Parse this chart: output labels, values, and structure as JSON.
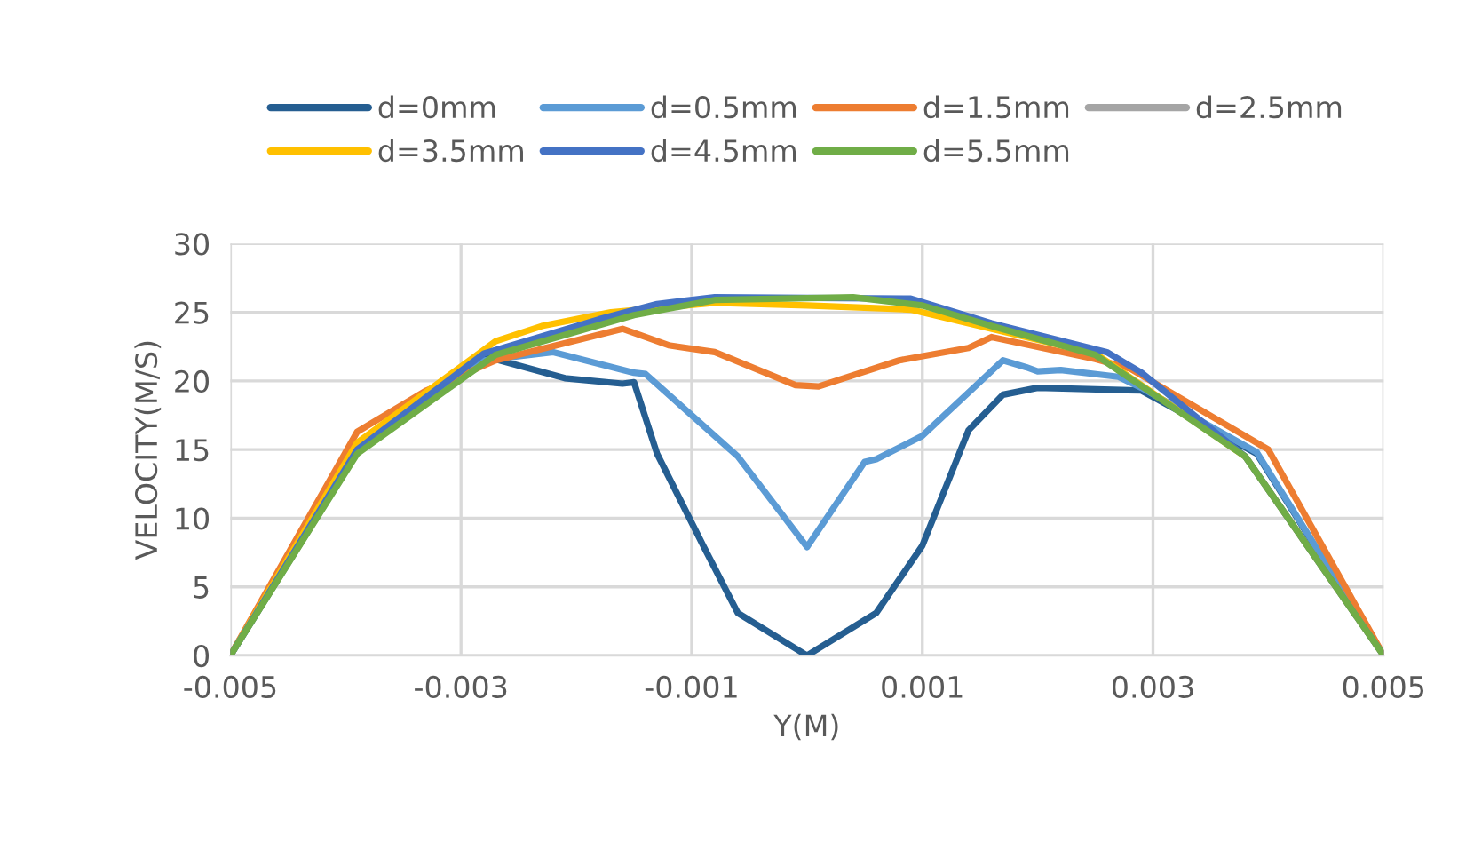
{
  "chart_data": {
    "type": "line",
    "xlabel": "Y(M)",
    "ylabel": "VELOCITY(M/S)",
    "xlim": [
      -0.005,
      0.005
    ],
    "xticks": [
      -0.005,
      -0.003,
      -0.001,
      0.001,
      0.003,
      0.005
    ],
    "ylim": [
      0,
      30
    ],
    "yticks": [
      0,
      5,
      10,
      15,
      20,
      25,
      30
    ],
    "grid": true,
    "legend": "top",
    "line_style": "solid",
    "series": [
      {
        "name": "d=0mm",
        "color": "#255e91",
        "x": [
          -0.005,
          -0.0039,
          -0.0028,
          -0.0021,
          -0.0016,
          -0.0015,
          -0.0013,
          -0.0009,
          -0.0006,
          0,
          0.0006,
          0.001,
          0.0014,
          0.0017,
          0.002,
          0.0029,
          0.0039,
          0.005
        ],
        "values": [
          0,
          14.8,
          21.8,
          20.2,
          19.8,
          19.9,
          14.7,
          8,
          3.1,
          0,
          3.1,
          8,
          16.4,
          19.0,
          19.5,
          19.3,
          14.7,
          0
        ]
      },
      {
        "name": "d=0.5mm",
        "color": "#5b9bd5",
        "x": [
          -0.005,
          -0.0039,
          -0.0028,
          -0.0022,
          -0.0015,
          -0.0014,
          -0.0006,
          0,
          0.0005,
          0.0006,
          0.001,
          0.0017,
          0.0019,
          0.002,
          0.0022,
          0.0027,
          0.0029,
          0.0039,
          0.005
        ],
        "values": [
          0,
          15.5,
          21.5,
          22.1,
          20.6,
          20.5,
          14.5,
          7.9,
          14.1,
          14.3,
          16.0,
          21.5,
          21.0,
          20.7,
          20.8,
          20.3,
          19.5,
          14.8,
          0
        ]
      },
      {
        "name": "d=1.5mm",
        "color": "#ed7d31",
        "x": [
          -0.005,
          -0.0039,
          -0.0033,
          -0.0027,
          -0.0016,
          -0.0012,
          -0.0008,
          -0.0001,
          0.0001,
          0.0008,
          0.0014,
          0.0016,
          0.0025,
          0.0028,
          0.004,
          0.005
        ],
        "values": [
          0,
          16.3,
          19.3,
          21.5,
          23.8,
          22.6,
          22.1,
          19.7,
          19.6,
          21.5,
          22.4,
          23.2,
          21.6,
          20.9,
          15.0,
          0
        ]
      },
      {
        "name": "d=2.5mm",
        "color": "#a5a5a5"
      },
      {
        "name": "d=3.5mm",
        "color": "#ffc000",
        "x": [
          -0.005,
          -0.0039,
          -0.0027,
          -0.0023,
          -0.0017,
          -0.0008,
          0,
          0.0009,
          0.0025,
          0.0038,
          0.005
        ],
        "values": [
          0,
          15.5,
          22.9,
          24.0,
          25.0,
          25.7,
          25.5,
          25.2,
          22.0,
          14.5,
          0
        ]
      },
      {
        "name": "d=4.5mm",
        "color": "#4472c4",
        "x": [
          -0.005,
          -0.0039,
          -0.0028,
          -0.0018,
          -0.0013,
          -0.0008,
          0.0009,
          0.0016,
          0.0026,
          0.0029,
          0.0038,
          0.005
        ],
        "values": [
          0,
          15.0,
          22.0,
          24.5,
          25.6,
          26.1,
          26.0,
          24.2,
          22.1,
          20.6,
          14.5,
          0
        ]
      },
      {
        "name": "d=5.5mm",
        "color": "#70ad47",
        "x": [
          -0.005,
          -0.0039,
          -0.0027,
          -0.0015,
          -0.0008,
          0.0004,
          0.001,
          0.0016,
          0.0025,
          0.0038,
          0.005
        ],
        "values": [
          0,
          14.7,
          21.9,
          24.8,
          25.9,
          26.1,
          25.5,
          24.0,
          21.9,
          14.5,
          0
        ]
      }
    ]
  }
}
